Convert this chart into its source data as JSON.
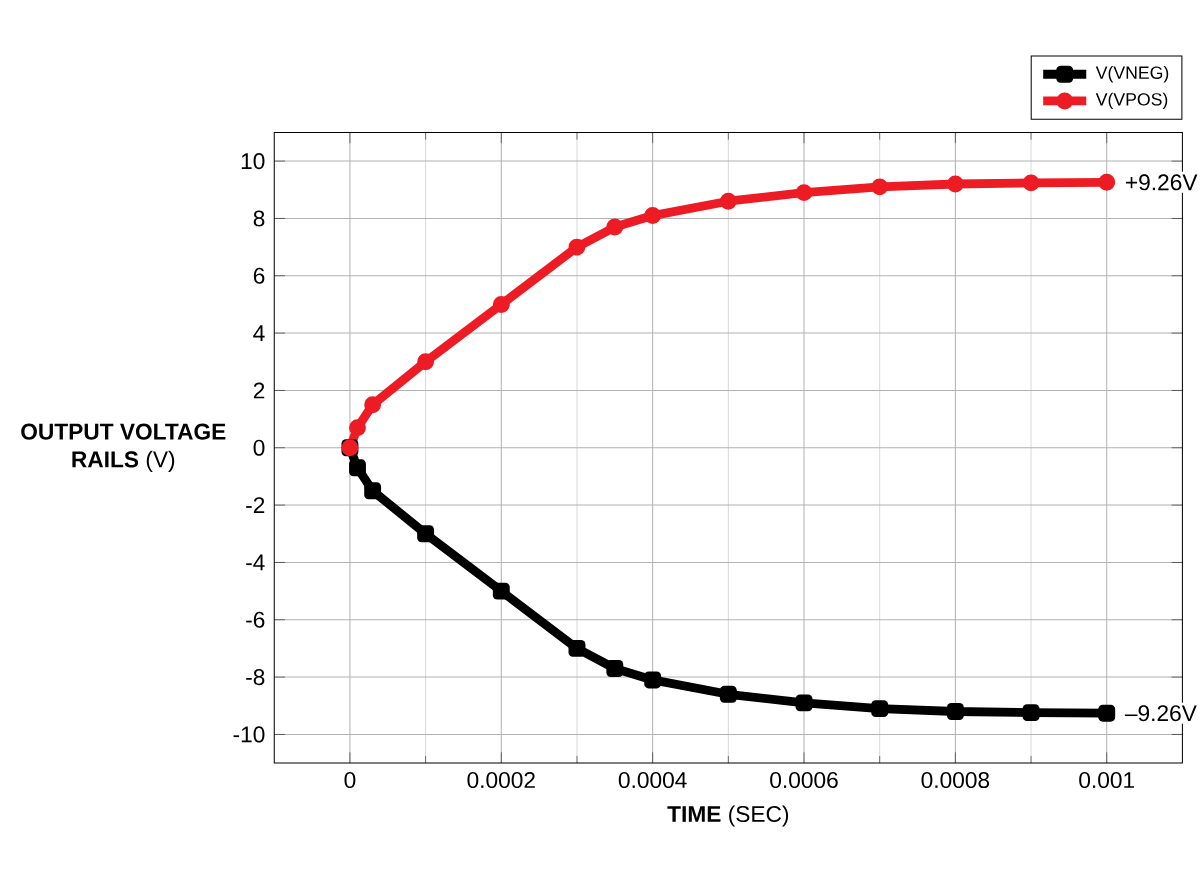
{
  "chart_data": {
    "type": "line",
    "x": [
      0,
      1e-05,
      3e-05,
      0.0001,
      0.0002,
      0.0003,
      0.00035,
      0.0004,
      0.0005,
      0.0006,
      0.0007,
      0.0008,
      0.0009,
      0.001
    ],
    "series": [
      {
        "name": "V(VNEG)",
        "color": "#000000",
        "marker": "square",
        "values": [
          0,
          -0.7,
          -1.5,
          -3,
          -5,
          -7,
          -7.7,
          -8.1,
          -8.6,
          -8.9,
          -9.1,
          -9.2,
          -9.24,
          -9.26
        ]
      },
      {
        "name": "V(VPOS)",
        "color": "#ed1c24",
        "marker": "circle",
        "values": [
          0,
          0.7,
          1.5,
          3,
          5,
          7,
          7.7,
          8.1,
          8.6,
          8.9,
          9.1,
          9.2,
          9.24,
          9.26
        ]
      }
    ],
    "xlabel": "**TIME** (SEC)",
    "ylabel": "**OUTPUT VOLTAGE RAILS** (V)",
    "xlim": [
      -0.0001,
      0.0011
    ],
    "ylim": [
      -11,
      11
    ],
    "xticks": [
      0,
      0.0002,
      0.0004,
      0.0006,
      0.0008,
      0.001
    ],
    "yticks": [
      -10,
      -8,
      -6,
      -4,
      -2,
      0,
      2,
      4,
      6,
      8,
      10
    ],
    "grid": true,
    "legend": "top right",
    "line_style": "solid",
    "annotations": [
      {
        "text": "+9.26V",
        "x": 0.001,
        "y": 9.26
      },
      {
        "text": "–9.26V",
        "x": 0.001,
        "y": -9.26
      }
    ]
  }
}
